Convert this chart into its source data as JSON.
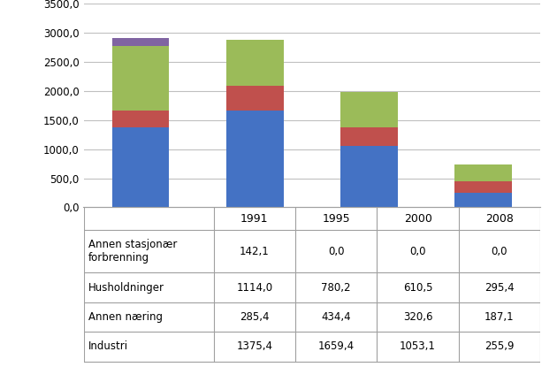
{
  "years": [
    "1991",
    "1995",
    "2000",
    "2008"
  ],
  "series": {
    "Industri": [
      1375.4,
      1659.4,
      1053.1,
      255.9
    ],
    "Annen næring": [
      285.4,
      434.4,
      320.6,
      187.1
    ],
    "Husholdninger": [
      1114.0,
      780.2,
      610.5,
      295.4
    ],
    "Annen stasjonær forbrenning": [
      142.1,
      0.0,
      0.0,
      0.0
    ]
  },
  "colors": {
    "Industri": "#4472C4",
    "Annen næring": "#C0504D",
    "Husholdninger": "#9BBB59",
    "Annen stasjonær forbrenning": "#8064A2"
  },
  "ylim": [
    0,
    3500
  ],
  "yticks": [
    0,
    500,
    1000,
    1500,
    2000,
    2500,
    3000,
    3500
  ],
  "ytick_labels": [
    "0,0",
    "500,0",
    "1000,0",
    "1500,0",
    "2000,0",
    "2500,0",
    "3000,0",
    "3500,0"
  ],
  "table_rows": [
    [
      "Annen stasjonær\nforbrenning",
      "142,1",
      "0,0",
      "0,0",
      "0,0"
    ],
    [
      "Husholdninger",
      "1114,0",
      "780,2",
      "610,5",
      "295,4"
    ],
    [
      "Annen næring",
      "285,4",
      "434,4",
      "320,6",
      "187,1"
    ],
    [
      "Industri",
      "1375,4",
      "1659,4",
      "1053,1",
      "255,9"
    ]
  ],
  "bar_width": 0.5,
  "background_color": "#FFFFFF"
}
